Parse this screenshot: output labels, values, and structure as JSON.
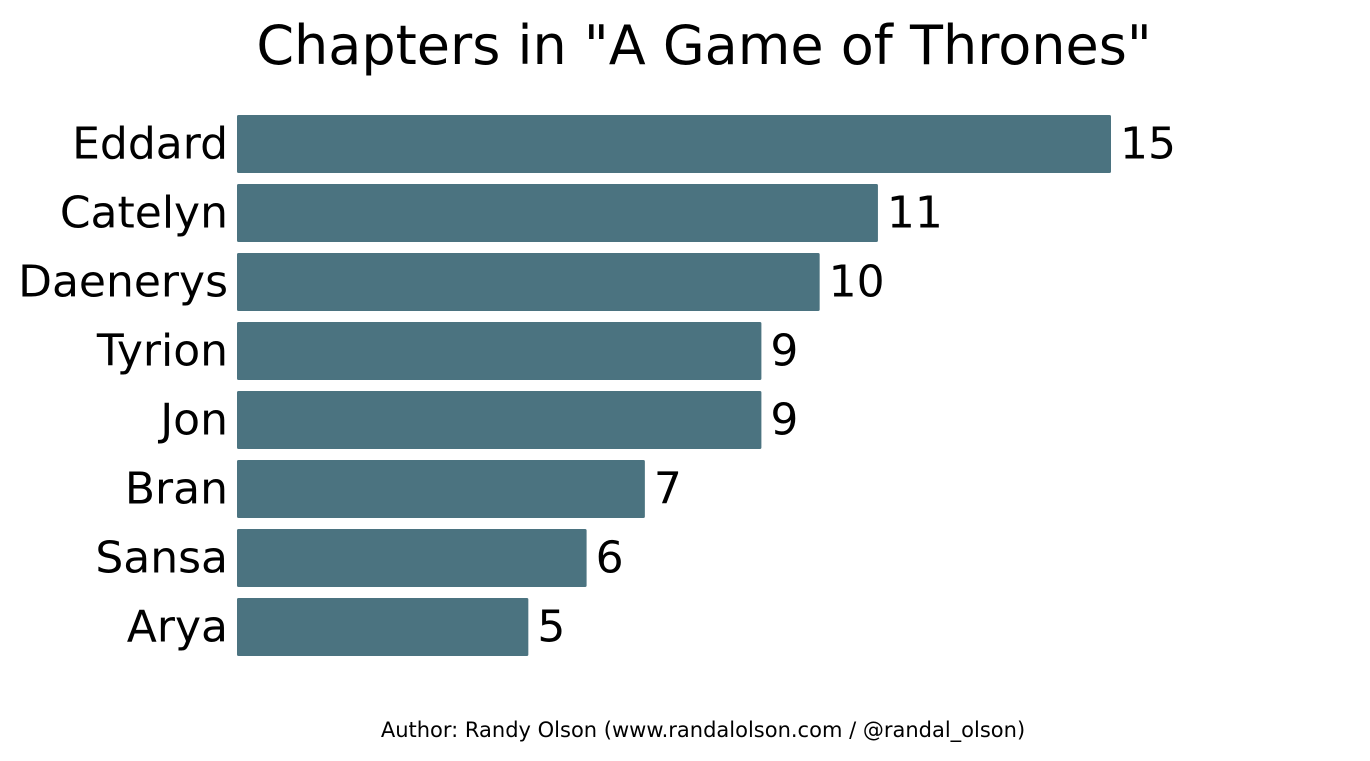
{
  "chart_data": {
    "type": "bar",
    "orientation": "horizontal",
    "title": "Chapters in \"A Game of Thrones\"",
    "categories": [
      "Eddard",
      "Catelyn",
      "Daenerys",
      "Tyrion",
      "Jon",
      "Bran",
      "Sansa",
      "Arya"
    ],
    "values": [
      15,
      11,
      10,
      9,
      9,
      7,
      6,
      5
    ],
    "xlim": [
      0,
      15
    ],
    "grid": false,
    "data_labels": true,
    "bar_color": "#4b7380"
  },
  "footer": {
    "credit": "Author: Randy Olson (www.randalolson.com / @randal_olson)"
  }
}
